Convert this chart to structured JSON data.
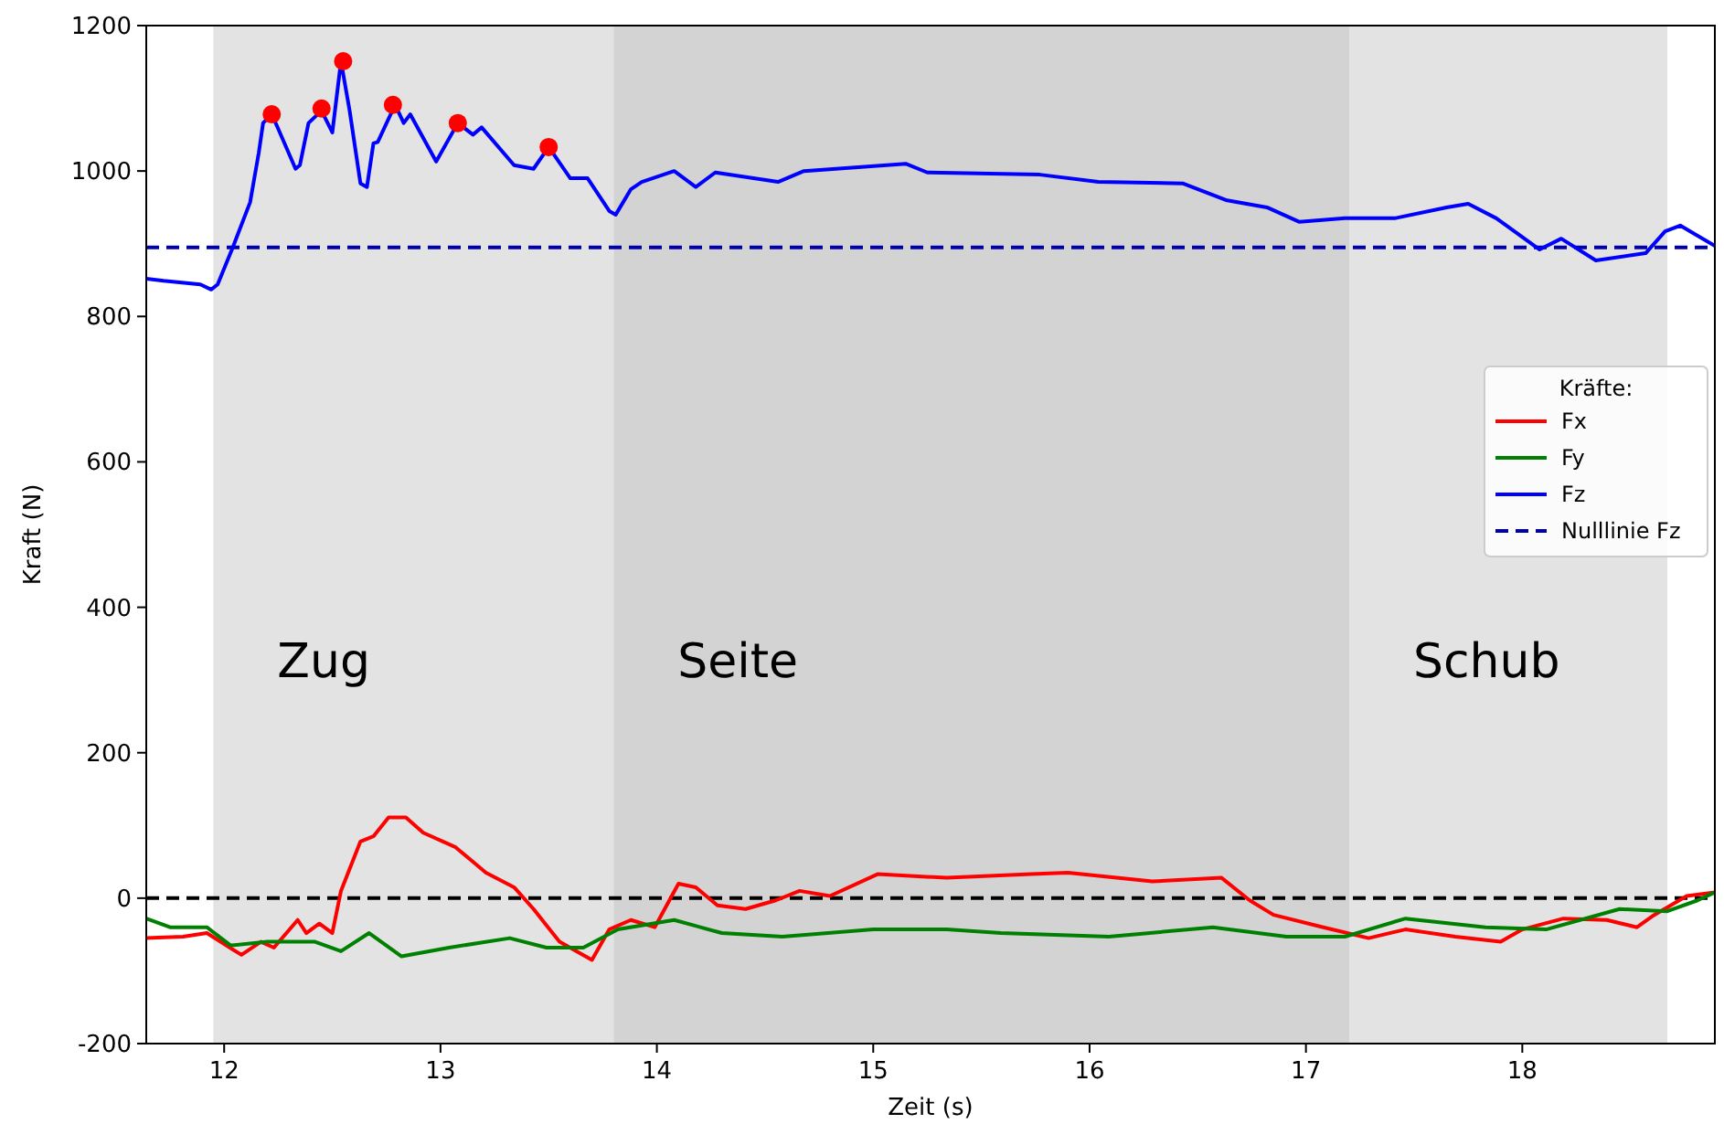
{
  "chart_data": {
    "type": "line",
    "xlabel": "Zeit (s)",
    "ylabel": "Kraft (N)",
    "legend_title": "Kräfte:",
    "legend": "right",
    "grid": false,
    "xlim": [
      11.64,
      18.89
    ],
    "ylim": [
      -200,
      1200
    ],
    "xticks": [
      12,
      13,
      14,
      15,
      16,
      17,
      18
    ],
    "yticks": [
      -200,
      0,
      200,
      400,
      600,
      800,
      1000,
      1200
    ],
    "series": [
      {
        "name": "Fx",
        "color": "#ff0000",
        "x": [
          11.64,
          11.81,
          11.92,
          12.08,
          12.17,
          12.23,
          12.34,
          12.38,
          12.44,
          12.5,
          12.54,
          12.63,
          12.69,
          12.76,
          12.84,
          12.92,
          13.07,
          13.21,
          13.34,
          13.43,
          13.55,
          13.7,
          13.78,
          13.88,
          13.99,
          14.1,
          14.18,
          14.28,
          14.41,
          14.55,
          14.66,
          14.8,
          15.02,
          15.34,
          15.73,
          15.9,
          16.29,
          16.61,
          16.74,
          16.85,
          17.08,
          17.29,
          17.46,
          17.69,
          17.9,
          18.0,
          18.19,
          18.39,
          18.53,
          18.61,
          18.76,
          18.89
        ],
        "values": [
          -55,
          -53,
          -48,
          -78,
          -60,
          -68,
          -30,
          -48,
          -35,
          -48,
          10,
          78,
          85,
          111,
          111,
          90,
          70,
          35,
          15,
          -15,
          -60,
          -85,
          -43,
          -30,
          -40,
          20,
          15,
          -10,
          -15,
          -3,
          10,
          3,
          33,
          28,
          33,
          35,
          23,
          28,
          -3,
          -23,
          -40,
          -55,
          -43,
          -53,
          -60,
          -43,
          -28,
          -30,
          -40,
          -23,
          3,
          8
        ]
      },
      {
        "name": "Fy",
        "color": "#008000",
        "x": [
          11.64,
          11.75,
          11.92,
          12.03,
          12.2,
          12.42,
          12.54,
          12.67,
          12.82,
          13.04,
          13.32,
          13.49,
          13.66,
          13.82,
          14.08,
          14.3,
          14.58,
          15.0,
          15.34,
          15.59,
          16.09,
          16.57,
          16.91,
          17.18,
          17.46,
          17.83,
          18.11,
          18.45,
          18.67,
          18.81,
          18.89
        ],
        "values": [
          -28,
          -40,
          -40,
          -65,
          -60,
          -60,
          -73,
          -48,
          -80,
          -68,
          -55,
          -68,
          -68,
          -43,
          -30,
          -48,
          -53,
          -43,
          -43,
          -48,
          -53,
          -40,
          -53,
          -53,
          -28,
          -40,
          -43,
          -15,
          -18,
          -3,
          8
        ]
      },
      {
        "name": "Fz",
        "color": "#0000ff",
        "x": [
          11.64,
          11.72,
          11.89,
          11.94,
          11.97,
          12.04,
          12.12,
          12.16,
          12.18,
          12.22,
          12.25,
          12.33,
          12.35,
          12.39,
          12.45,
          12.5,
          12.54,
          12.58,
          12.63,
          12.66,
          12.69,
          12.71,
          12.79,
          12.83,
          12.86,
          12.98,
          13.08,
          13.15,
          13.19,
          13.34,
          13.43,
          13.5,
          13.6,
          13.68,
          13.78,
          13.81,
          13.88,
          13.93,
          14.08,
          14.18,
          14.27,
          14.56,
          14.68,
          15.15,
          15.25,
          15.77,
          16.04,
          16.43,
          16.63,
          16.82,
          16.97,
          17.18,
          17.41,
          17.65,
          17.75,
          17.88,
          18.08,
          18.18,
          18.34,
          18.57,
          18.66,
          18.73,
          18.89
        ],
        "values": [
          852,
          849,
          844,
          837,
          844,
          895,
          957,
          1025,
          1066,
          1078,
          1058,
          1003,
          1008,
          1066,
          1083,
          1053,
          1151,
          1083,
          983,
          978,
          1038,
          1040,
          1091,
          1066,
          1078,
          1013,
          1066,
          1050,
          1060,
          1008,
          1003,
          1033,
          990,
          990,
          945,
          940,
          975,
          985,
          1000,
          978,
          998,
          985,
          1000,
          1010,
          998,
          995,
          985,
          983,
          960,
          950,
          930,
          935,
          935,
          950,
          955,
          935,
          892,
          907,
          877,
          887,
          917,
          925,
          897
        ]
      },
      {
        "type": "scatter",
        "marker": "circle",
        "color": "#ff0000",
        "x": [
          12.22,
          12.45,
          12.55,
          12.78,
          13.08,
          13.5
        ],
        "values": [
          1078,
          1086,
          1151,
          1091,
          1066,
          1033
        ]
      }
    ],
    "ref_lines": [
      {
        "axis": "y",
        "value": 895,
        "label": "Nulllinie Fz",
        "color": "#0000aa",
        "line_style": "dashed"
      },
      {
        "axis": "y",
        "value": 0,
        "color": "#000000",
        "line_style": "dashed"
      }
    ],
    "bands": [
      {
        "axis": "x",
        "from": 11.95,
        "to": 13.8,
        "label": "Zug",
        "color": "#e3e3e3"
      },
      {
        "axis": "x",
        "from": 13.8,
        "to": 17.2,
        "label": "Seite",
        "color": "#d3d3d3"
      },
      {
        "axis": "x",
        "from": 17.2,
        "to": 18.67,
        "label": "Schub",
        "color": "#e3e3e3"
      }
    ]
  }
}
